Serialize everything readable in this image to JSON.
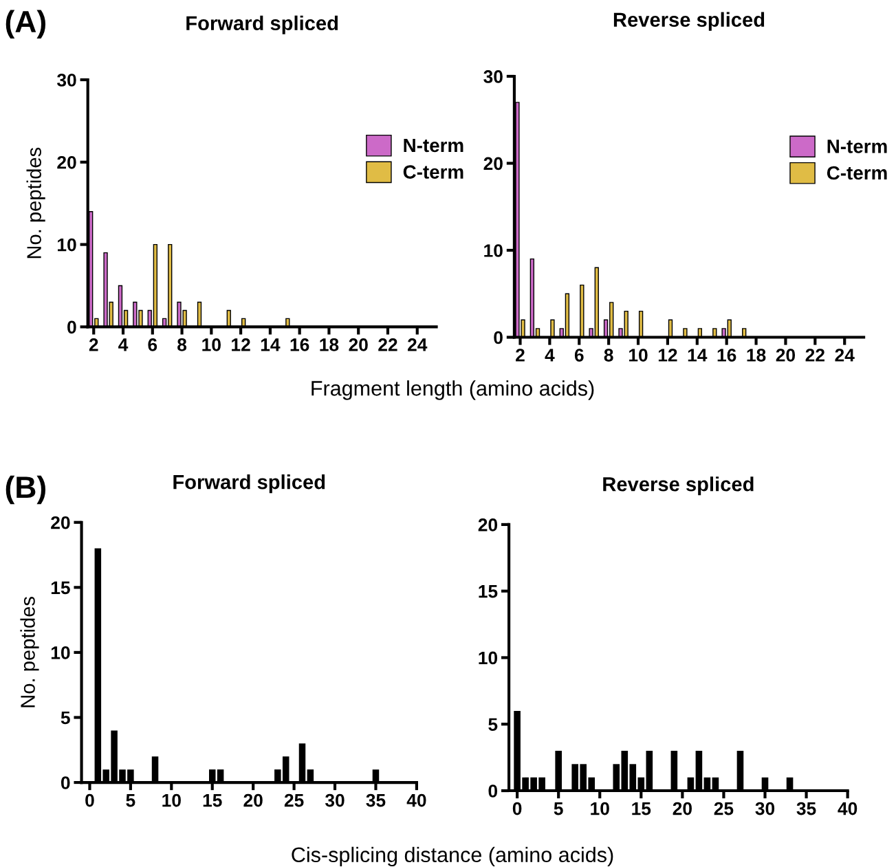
{
  "chart_data": [
    {
      "type": "bar",
      "title": "Forward spliced",
      "ylabel": "No. peptides",
      "annotations": [
        "(A)",
        "Fragment length (amino acids)"
      ],
      "xlim": [
        1.6,
        25.3
      ],
      "xticks": [
        2,
        4,
        6,
        8,
        10,
        12,
        14,
        16,
        18,
        20,
        22,
        24
      ],
      "ylim": [
        0,
        30
      ],
      "yticks": [
        0,
        10,
        20,
        30
      ],
      "legend": "right",
      "grid": false,
      "series": [
        {
          "name": "N-term",
          "color": "#cc6ac8",
          "x": [
            2,
            3,
            4,
            5,
            6,
            7,
            8
          ],
          "values": [
            14,
            9,
            5,
            3,
            2,
            1,
            3
          ]
        },
        {
          "name": "C-term",
          "color": "#e0bc45",
          "x": [
            2,
            3,
            4,
            5,
            6,
            7,
            8,
            9,
            11,
            12,
            15
          ],
          "values": [
            1,
            3,
            2,
            2,
            10,
            10,
            2,
            3,
            2,
            1,
            1
          ]
        }
      ]
    },
    {
      "type": "bar",
      "title": "Reverse spliced",
      "xlim": [
        1.6,
        25.3
      ],
      "xticks": [
        2,
        4,
        6,
        8,
        10,
        12,
        14,
        16,
        18,
        20,
        22,
        24
      ],
      "ylim": [
        0,
        30
      ],
      "yticks": [
        0,
        10,
        20,
        30
      ],
      "legend": "right",
      "grid": false,
      "series": [
        {
          "name": "N-term",
          "color": "#cc6ac8",
          "x": [
            2,
            3,
            5,
            7,
            8,
            9,
            16
          ],
          "values": [
            27,
            9,
            1,
            1,
            2,
            1,
            1
          ]
        },
        {
          "name": "C-term",
          "color": "#e0bc45",
          "x": [
            2,
            3,
            4,
            5,
            6,
            7,
            8,
            9,
            10,
            12,
            13,
            14,
            15,
            16,
            17
          ],
          "values": [
            2,
            1,
            2,
            5,
            6,
            8,
            4,
            3,
            3,
            2,
            1,
            1,
            1,
            2,
            1
          ]
        }
      ]
    },
    {
      "type": "bar",
      "title": "Forward spliced",
      "ylabel": "No. peptides",
      "annotations": [
        "(B)",
        "Cis-splicing distance (amino acids)"
      ],
      "xlim": [
        -1,
        40
      ],
      "xticks": [
        0,
        5,
        10,
        15,
        20,
        25,
        30,
        35,
        40
      ],
      "ylim": [
        0,
        20
      ],
      "yticks": [
        0,
        5,
        10,
        15,
        20
      ],
      "grid": false,
      "series": [
        {
          "color": "#000000",
          "x": [
            1,
            2,
            3,
            4,
            5,
            8,
            15,
            16,
            23,
            24,
            26,
            27,
            35
          ],
          "values": [
            18,
            1,
            4,
            1,
            1,
            2,
            1,
            1,
            1,
            2,
            3,
            1,
            1
          ]
        }
      ]
    },
    {
      "type": "bar",
      "title": "Reverse spliced",
      "xlim": [
        -1,
        40
      ],
      "xticks": [
        0,
        5,
        10,
        15,
        20,
        25,
        30,
        35,
        40
      ],
      "ylim": [
        0,
        20
      ],
      "yticks": [
        0,
        5,
        10,
        15,
        20
      ],
      "grid": false,
      "series": [
        {
          "color": "#000000",
          "x": [
            0,
            1,
            2,
            3,
            5,
            7,
            8,
            9,
            12,
            13,
            14,
            15,
            16,
            19,
            21,
            22,
            23,
            24,
            27,
            30,
            33
          ],
          "values": [
            6,
            1,
            1,
            1,
            3,
            2,
            2,
            1,
            2,
            3,
            2,
            1,
            3,
            3,
            1,
            3,
            1,
            1,
            3,
            1,
            1
          ]
        }
      ]
    }
  ]
}
